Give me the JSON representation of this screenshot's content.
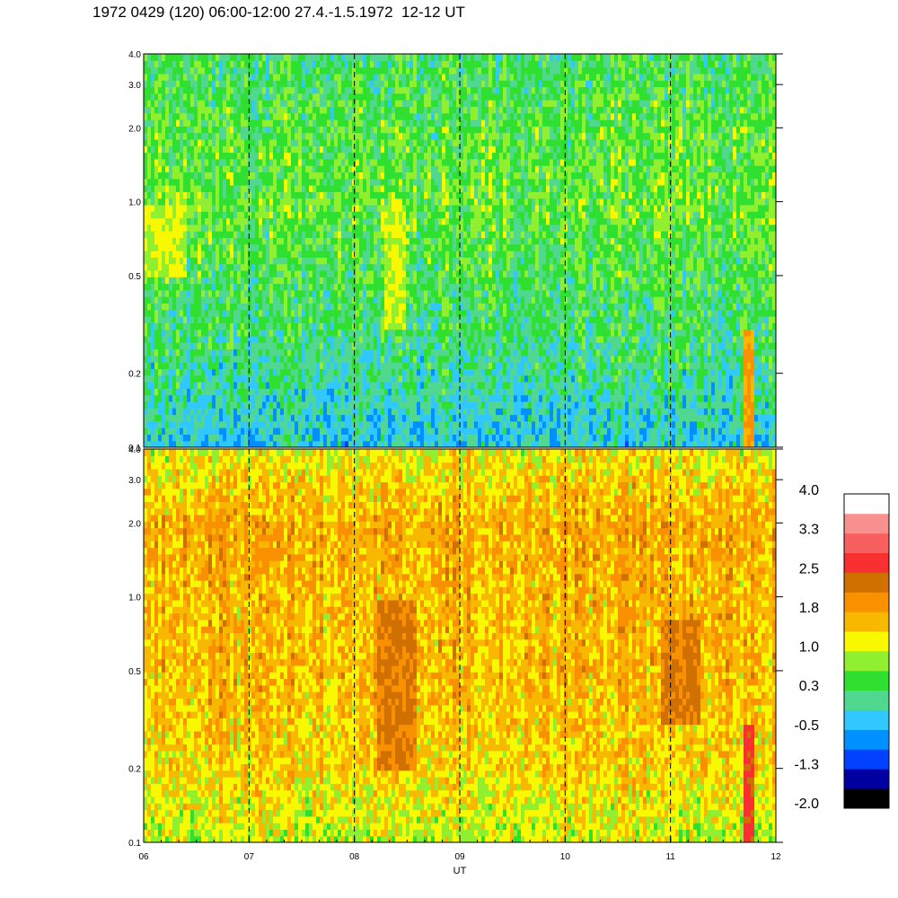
{
  "title": "1972 0429 (120) 06:00-12:00 27.4.-1.5.1972  12-12 UT",
  "chart_data": [
    {
      "type": "heatmap",
      "panel": "upper",
      "x": {
        "label": "UT",
        "range": [
          6,
          12
        ],
        "ticks": [
          6,
          7,
          8,
          9,
          10,
          11,
          12
        ],
        "tick_labels": [
          "06",
          "07",
          "08",
          "09",
          "10",
          "11",
          "12"
        ]
      },
      "y": {
        "scale": "log",
        "range": [
          0.1,
          4.0
        ],
        "ticks": [
          0.1,
          0.2,
          0.5,
          1.0,
          2.0,
          3.0,
          4.0
        ],
        "tick_labels": [
          "0.1",
          "0.2",
          "0.5",
          "1.0",
          "2.0",
          "3.0",
          "4.0"
        ]
      },
      "dashed_lines_at_x": [
        7,
        8,
        9,
        10,
        11
      ],
      "background_level_profile": [
        {
          "y": 0.1,
          "level": -0.3
        },
        {
          "y": 0.2,
          "level": 0.1
        },
        {
          "y": 0.5,
          "level": 0.4
        },
        {
          "y": 1.0,
          "level": 0.6
        },
        {
          "y": 2.0,
          "level": 0.5
        },
        {
          "y": 4.0,
          "level": 0.3
        }
      ],
      "enhanced_regions": [
        {
          "x": [
            6.0,
            6.4
          ],
          "y": [
            0.5,
            1.0
          ],
          "level": 1.0
        },
        {
          "x": [
            8.3,
            8.5
          ],
          "y": [
            0.3,
            1.0
          ],
          "level": 1.0
        },
        {
          "x": [
            11.7,
            11.8
          ],
          "y": [
            0.1,
            0.3
          ],
          "level": 1.8
        }
      ]
    },
    {
      "type": "heatmap",
      "panel": "lower",
      "x": {
        "label": "UT",
        "range": [
          6,
          12
        ],
        "ticks": [
          6,
          7,
          8,
          9,
          10,
          11,
          12
        ],
        "tick_labels": [
          "06",
          "07",
          "08",
          "09",
          "10",
          "11",
          "12"
        ]
      },
      "y": {
        "scale": "log",
        "range": [
          0.1,
          4.0
        ],
        "ticks": [
          0.1,
          0.2,
          0.5,
          1.0,
          2.0,
          3.0,
          4.0
        ],
        "tick_labels": [
          "0.1",
          "0.2",
          "0.5",
          "1.0",
          "2.0",
          "3.0",
          "4.0"
        ]
      },
      "dashed_lines_at_x": [
        7,
        8,
        9,
        10,
        11
      ],
      "background_level_profile": [
        {
          "y": 0.1,
          "level": 1.0
        },
        {
          "y": 0.2,
          "level": 1.4
        },
        {
          "y": 0.5,
          "level": 1.6
        },
        {
          "y": 1.0,
          "level": 1.6
        },
        {
          "y": 2.0,
          "level": 1.7
        },
        {
          "y": 4.0,
          "level": 1.2
        }
      ],
      "enhanced_regions": [
        {
          "x": [
            8.2,
            8.6
          ],
          "y": [
            0.2,
            1.0
          ],
          "level": 2.2
        },
        {
          "x": [
            10.9,
            11.3
          ],
          "y": [
            0.3,
            0.8
          ],
          "level": 2.2
        },
        {
          "x": [
            11.7,
            11.8
          ],
          "y": [
            0.1,
            0.3
          ],
          "level": 2.6
        }
      ]
    }
  ],
  "colorbar": {
    "colors": [
      "#000000",
      "#0000a0",
      "#0040ff",
      "#0090ff",
      "#30c8ff",
      "#50d890",
      "#30e030",
      "#90f030",
      "#f8f800",
      "#f8b800",
      "#f89000",
      "#d07000",
      "#f83030",
      "#f86060",
      "#f89090",
      "#ffffff"
    ],
    "tick_labels": [
      "-2.0",
      "-1.3",
      "-0.5",
      "0.3",
      "1.0",
      "1.8",
      "2.5",
      "3.3",
      "4.0"
    ],
    "range": [
      -2.0,
      4.0
    ]
  }
}
